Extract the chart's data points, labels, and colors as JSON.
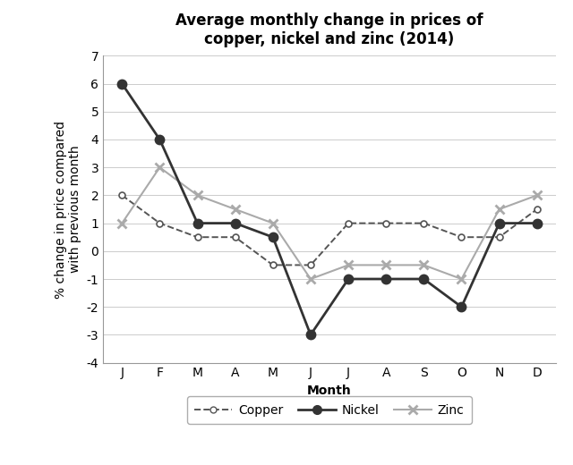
{
  "title": "Average monthly change in prices of\ncopper, nickel and zinc (2014)",
  "xlabel": "Month",
  "ylabel": "% change in price compared\nwith previous month",
  "months": [
    "J",
    "F",
    "M",
    "A",
    "M",
    "J",
    "J",
    "A",
    "S",
    "O",
    "N",
    "D"
  ],
  "copper": [
    2,
    1,
    0.5,
    0.5,
    -0.5,
    -0.5,
    1,
    1,
    1,
    0.5,
    0.5,
    1.5
  ],
  "nickel": [
    6,
    4,
    1,
    1,
    0.5,
    -3,
    -1,
    -1,
    -1,
    -2,
    1,
    1
  ],
  "zinc": [
    1,
    3,
    2,
    1.5,
    1,
    -1,
    -0.5,
    -0.5,
    -0.5,
    -1,
    1.5,
    2
  ],
  "ylim": [
    -4,
    7
  ],
  "yticks": [
    -4,
    -3,
    -2,
    -1,
    0,
    1,
    2,
    3,
    4,
    5,
    6,
    7
  ],
  "color_copper": "#555555",
  "color_nickel": "#333333",
  "color_zinc": "#aaaaaa",
  "title_fontsize": 12,
  "label_fontsize": 10,
  "tick_fontsize": 10,
  "legend_fontsize": 10
}
